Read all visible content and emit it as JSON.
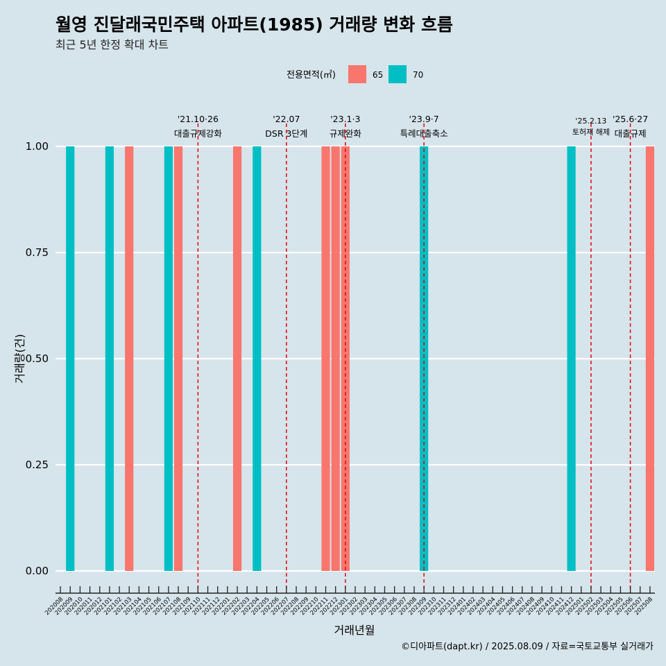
{
  "title": "월영 진달래국민주택 아파트(1985) 거래량 변화 흐름",
  "subtitle": "최근 5년 한정 확대 차트",
  "legend": {
    "title": "전용면적(㎡)",
    "entries": [
      {
        "label": "65",
        "color": "#F8766D"
      },
      {
        "label": "70",
        "color": "#00BFC4"
      }
    ]
  },
  "caption": "©디아파트(dapt.kr) / 2025.08.09 / 자료=국토교통부 실거래가",
  "colors": {
    "background": "#d6e4eb",
    "grid": "#ffffff",
    "annotation_line": "#e8000b",
    "text": "#000000"
  },
  "chart_data": {
    "type": "bar",
    "xlabel": "거래년월",
    "ylabel": "거래량(건)",
    "ylim": [
      0,
      1
    ],
    "yticks": [
      "0.00",
      "0.25",
      "0.50",
      "0.75",
      "1.00"
    ],
    "grid": true,
    "legend_position": "top",
    "categories": [
      "202008",
      "202009",
      "202010",
      "202011",
      "202012",
      "202101",
      "202102",
      "202103",
      "202104",
      "202105",
      "202106",
      "202107",
      "202108",
      "202109",
      "202110",
      "202111",
      "202112",
      "202201",
      "202202",
      "202203",
      "202204",
      "202205",
      "202206",
      "202207",
      "202208",
      "202209",
      "202210",
      "202211",
      "202212",
      "202301",
      "202302",
      "202303",
      "202304",
      "202305",
      "202306",
      "202307",
      "202308",
      "202309",
      "202310",
      "202311",
      "202312",
      "202401",
      "202402",
      "202403",
      "202404",
      "202405",
      "202406",
      "202407",
      "202408",
      "202409",
      "202410",
      "202411",
      "202412",
      "202501",
      "202502",
      "202503",
      "202504",
      "202505",
      "202506",
      "202507",
      "202508"
    ],
    "series": [
      {
        "name": "65",
        "color": "#F8766D",
        "values": [
          {
            "x": "202103",
            "y": 1
          },
          {
            "x": "202108",
            "y": 1
          },
          {
            "x": "202202",
            "y": 1
          },
          {
            "x": "202211",
            "y": 1
          },
          {
            "x": "202212",
            "y": 1
          },
          {
            "x": "202301",
            "y": 1
          },
          {
            "x": "202508",
            "y": 1
          }
        ]
      },
      {
        "name": "70",
        "color": "#00BFC4",
        "values": [
          {
            "x": "202009",
            "y": 1
          },
          {
            "x": "202101",
            "y": 1
          },
          {
            "x": "202107",
            "y": 1
          },
          {
            "x": "202204",
            "y": 1
          },
          {
            "x": "202309",
            "y": 1
          },
          {
            "x": "202412",
            "y": 1
          }
        ]
      }
    ],
    "annotations": [
      {
        "x": "202110",
        "date": "'21.10·26",
        "label": "대출규제강화"
      },
      {
        "x": "202207",
        "date": "'22.07",
        "label": "DSR 3단계"
      },
      {
        "x": "202301",
        "date": "'23.1·3",
        "label": "규제완화"
      },
      {
        "x": "202309",
        "date": "'23.9·7",
        "label": "특례대출축소"
      },
      {
        "x": "202502",
        "date": "'25.2.13",
        "label": "토허제 해제"
      },
      {
        "x": "202506",
        "date": "'25.6·27",
        "label": "대출규제"
      }
    ]
  }
}
